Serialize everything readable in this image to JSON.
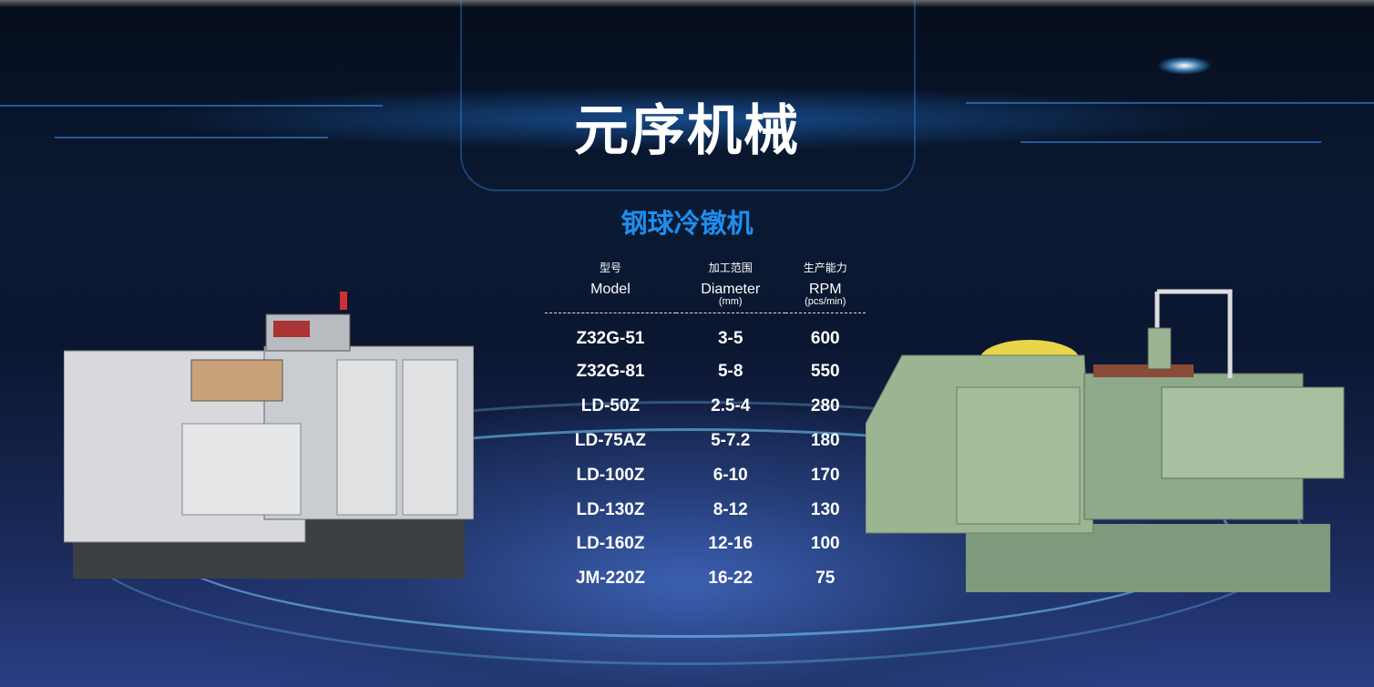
{
  "brand_title": "元序机械",
  "product_title": "钢球冷镦机",
  "table": {
    "headers": [
      {
        "cn": "型号",
        "en": "Model",
        "unit": ""
      },
      {
        "cn": "加工范围",
        "en": "Diameter",
        "unit": "(mm)"
      },
      {
        "cn": "生产能力",
        "en": "RPM",
        "unit": "(pcs/min)"
      }
    ],
    "rows": [
      [
        "Z32G-51",
        "3-5",
        "600"
      ],
      [
        "Z32G-81",
        "5-8",
        "550"
      ],
      [
        "LD-50Z",
        "2.5-4",
        "280"
      ],
      [
        "LD-75AZ",
        "5-7.2",
        "180"
      ],
      [
        "LD-100Z",
        "6-10",
        "170"
      ],
      [
        "LD-130Z",
        "8-12",
        "130"
      ],
      [
        "LD-160Z",
        "12-16",
        "100"
      ],
      [
        "JM-220Z",
        "16-22",
        "75"
      ]
    ]
  },
  "colors": {
    "accent": "#1e8ef0",
    "background": "#0a1a33"
  }
}
